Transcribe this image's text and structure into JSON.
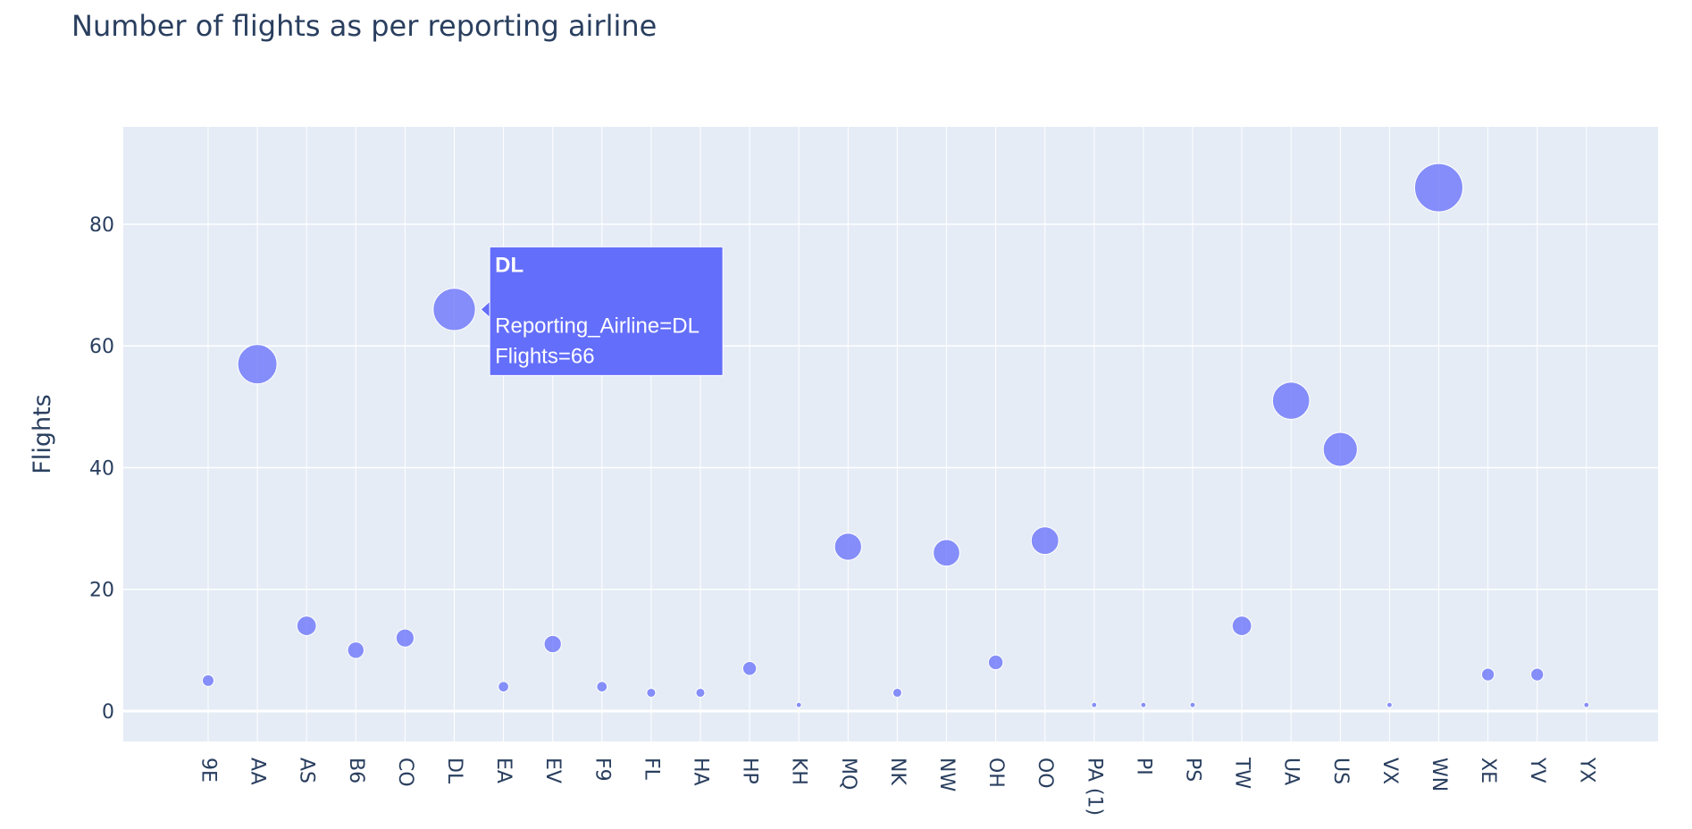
{
  "chart_data": {
    "type": "scatter",
    "title": "Number of flights as per reporting airline",
    "xlabel": "",
    "ylabel": "Flights",
    "ylim": [
      -5,
      96
    ],
    "yticks": [
      0,
      20,
      40,
      60,
      80
    ],
    "grid": true,
    "legend": "none",
    "marker_size_encodes": "Flights",
    "categories": [
      "9E",
      "AA",
      "AS",
      "B6",
      "CO",
      "DL",
      "EA",
      "EV",
      "F9",
      "FL",
      "HA",
      "HP",
      "KH",
      "MQ",
      "NK",
      "NW",
      "OH",
      "OO",
      "PA (1)",
      "PI",
      "PS",
      "TW",
      "UA",
      "US",
      "VX",
      "WN",
      "XE",
      "YV",
      "YX"
    ],
    "values": [
      5,
      57,
      14,
      10,
      12,
      66,
      4,
      11,
      4,
      3,
      3,
      7,
      1,
      27,
      3,
      26,
      8,
      28,
      1,
      1,
      1,
      14,
      51,
      43,
      1,
      86,
      6,
      6,
      1
    ],
    "tooltip": {
      "category": "DL",
      "title": "DL",
      "line1": "Reporting_Airline=DL",
      "line2": "Flights=66"
    }
  },
  "colors": {
    "marker": "#636efa",
    "plot_bg": "#e5ecf6",
    "grid": "#ffffff",
    "text": "#2a3f5f"
  }
}
